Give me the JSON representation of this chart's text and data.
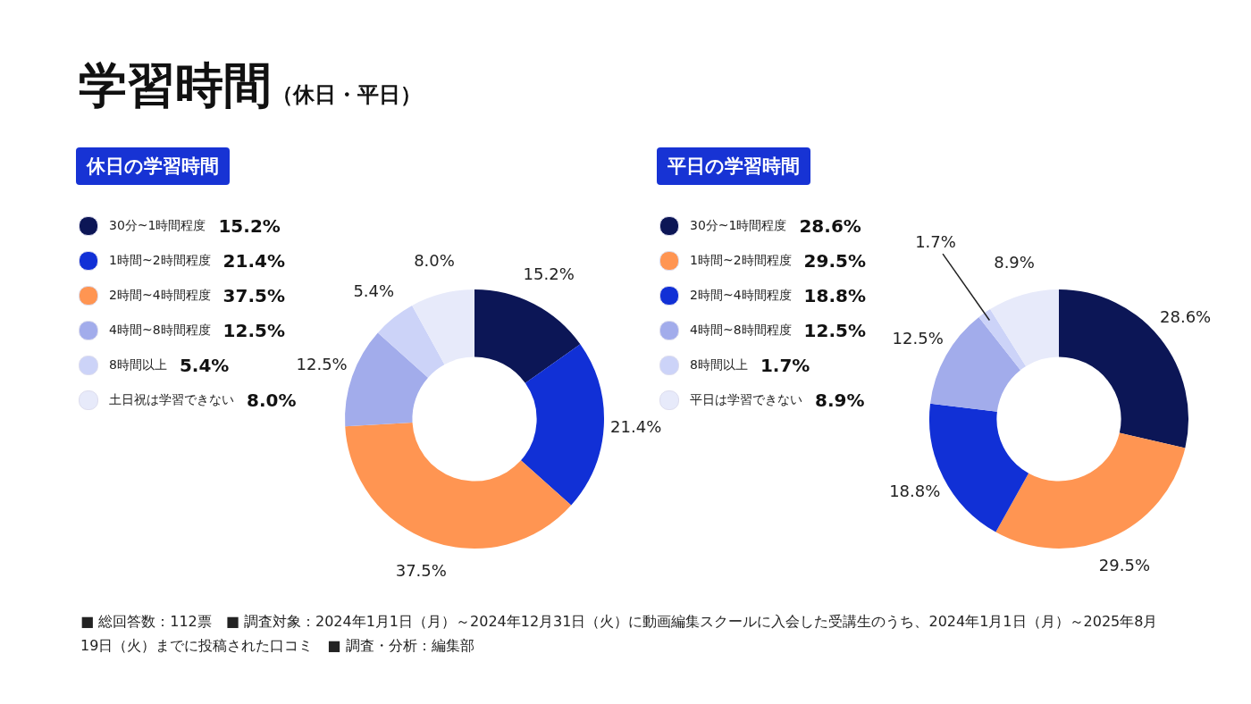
{
  "chart_data": [
    {
      "type": "donut",
      "title": "休日の学習時間",
      "legend": "left",
      "categories": [
        "30分~1時間程度",
        "1時間~2時間程度",
        "2時間~4時間程度",
        "4時間~8時間程度",
        "8時間以上",
        "土日祝は学習できない"
      ],
      "values": [
        15.2,
        21.4,
        37.5,
        12.5,
        5.4,
        8.0
      ],
      "value_labels": [
        "15.2%",
        "21.4%",
        "37.5%",
        "12.5%",
        "5.4%",
        "8.0%"
      ],
      "colors": [
        "#0c1656",
        "#1130d6",
        "#ff9552",
        "#a2aceb",
        "#ccd3f8",
        "#e7eafa"
      ]
    },
    {
      "type": "donut",
      "title": "平日の学習時間",
      "legend": "left",
      "categories": [
        "30分~1時間程度",
        "1時間~2時間程度",
        "2時間~4時間程度",
        "4時間~8時間程度",
        "8時間以上",
        "平日は学習できない"
      ],
      "values": [
        28.6,
        29.5,
        18.8,
        12.5,
        1.7,
        8.9
      ],
      "value_labels": [
        "28.6%",
        "29.5%",
        "18.8%",
        "12.5%",
        "1.7%",
        "8.9%"
      ],
      "colors": [
        "#0c1656",
        "#ff9552",
        "#1130d6",
        "#a2aceb",
        "#ccd3f8",
        "#e7eafa"
      ]
    },
    {
      "type": "other",
      "title": "学習時間",
      "subtitle": "（休日・平日）",
      "annotations": [
        "■ 総回答数：112票　■ 調査対象：2024年1月1日（月）～2024年12月31日（火）に動画編集スクールに入会した受講生のうち、2024年1月1日（月）～2025年8月19日（火）までに投稿された口コミ　■ 調査・分析：編集部"
      ]
    }
  ]
}
